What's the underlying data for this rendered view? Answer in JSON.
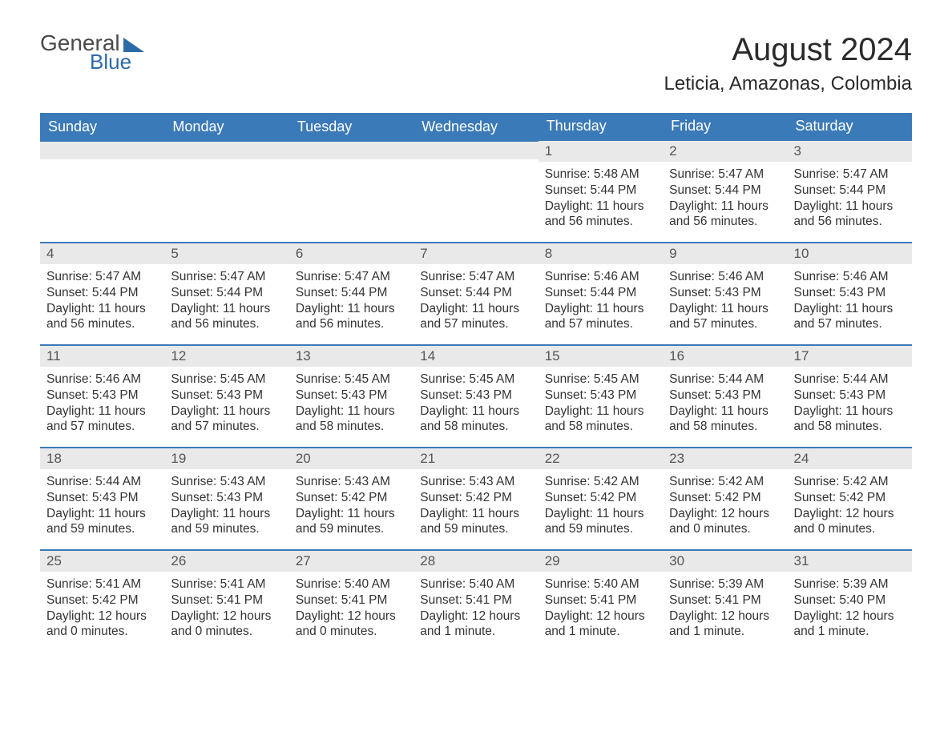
{
  "logo": {
    "text1": "General",
    "text2": "Blue"
  },
  "title": "August 2024",
  "location": "Leticia, Amazonas, Colombia",
  "colors": {
    "header_bg": "#3b7ab8",
    "header_text": "#ffffff",
    "daynum_bg": "#e9e9e9",
    "border": "#3b7ab8",
    "logo_accent": "#2e6aa8",
    "body_text": "#333333"
  },
  "columns": [
    "Sunday",
    "Monday",
    "Tuesday",
    "Wednesday",
    "Thursday",
    "Friday",
    "Saturday"
  ],
  "weeks": [
    [
      null,
      null,
      null,
      null,
      {
        "n": "1",
        "sunrise": "5:48 AM",
        "sunset": "5:44 PM",
        "daylight": "11 hours and 56 minutes."
      },
      {
        "n": "2",
        "sunrise": "5:47 AM",
        "sunset": "5:44 PM",
        "daylight": "11 hours and 56 minutes."
      },
      {
        "n": "3",
        "sunrise": "5:47 AM",
        "sunset": "5:44 PM",
        "daylight": "11 hours and 56 minutes."
      }
    ],
    [
      {
        "n": "4",
        "sunrise": "5:47 AM",
        "sunset": "5:44 PM",
        "daylight": "11 hours and 56 minutes."
      },
      {
        "n": "5",
        "sunrise": "5:47 AM",
        "sunset": "5:44 PM",
        "daylight": "11 hours and 56 minutes."
      },
      {
        "n": "6",
        "sunrise": "5:47 AM",
        "sunset": "5:44 PM",
        "daylight": "11 hours and 56 minutes."
      },
      {
        "n": "7",
        "sunrise": "5:47 AM",
        "sunset": "5:44 PM",
        "daylight": "11 hours and 57 minutes."
      },
      {
        "n": "8",
        "sunrise": "5:46 AM",
        "sunset": "5:44 PM",
        "daylight": "11 hours and 57 minutes."
      },
      {
        "n": "9",
        "sunrise": "5:46 AM",
        "sunset": "5:43 PM",
        "daylight": "11 hours and 57 minutes."
      },
      {
        "n": "10",
        "sunrise": "5:46 AM",
        "sunset": "5:43 PM",
        "daylight": "11 hours and 57 minutes."
      }
    ],
    [
      {
        "n": "11",
        "sunrise": "5:46 AM",
        "sunset": "5:43 PM",
        "daylight": "11 hours and 57 minutes."
      },
      {
        "n": "12",
        "sunrise": "5:45 AM",
        "sunset": "5:43 PM",
        "daylight": "11 hours and 57 minutes."
      },
      {
        "n": "13",
        "sunrise": "5:45 AM",
        "sunset": "5:43 PM",
        "daylight": "11 hours and 58 minutes."
      },
      {
        "n": "14",
        "sunrise": "5:45 AM",
        "sunset": "5:43 PM",
        "daylight": "11 hours and 58 minutes."
      },
      {
        "n": "15",
        "sunrise": "5:45 AM",
        "sunset": "5:43 PM",
        "daylight": "11 hours and 58 minutes."
      },
      {
        "n": "16",
        "sunrise": "5:44 AM",
        "sunset": "5:43 PM",
        "daylight": "11 hours and 58 minutes."
      },
      {
        "n": "17",
        "sunrise": "5:44 AM",
        "sunset": "5:43 PM",
        "daylight": "11 hours and 58 minutes."
      }
    ],
    [
      {
        "n": "18",
        "sunrise": "5:44 AM",
        "sunset": "5:43 PM",
        "daylight": "11 hours and 59 minutes."
      },
      {
        "n": "19",
        "sunrise": "5:43 AM",
        "sunset": "5:43 PM",
        "daylight": "11 hours and 59 minutes."
      },
      {
        "n": "20",
        "sunrise": "5:43 AM",
        "sunset": "5:42 PM",
        "daylight": "11 hours and 59 minutes."
      },
      {
        "n": "21",
        "sunrise": "5:43 AM",
        "sunset": "5:42 PM",
        "daylight": "11 hours and 59 minutes."
      },
      {
        "n": "22",
        "sunrise": "5:42 AM",
        "sunset": "5:42 PM",
        "daylight": "11 hours and 59 minutes."
      },
      {
        "n": "23",
        "sunrise": "5:42 AM",
        "sunset": "5:42 PM",
        "daylight": "12 hours and 0 minutes."
      },
      {
        "n": "24",
        "sunrise": "5:42 AM",
        "sunset": "5:42 PM",
        "daylight": "12 hours and 0 minutes."
      }
    ],
    [
      {
        "n": "25",
        "sunrise": "5:41 AM",
        "sunset": "5:42 PM",
        "daylight": "12 hours and 0 minutes."
      },
      {
        "n": "26",
        "sunrise": "5:41 AM",
        "sunset": "5:41 PM",
        "daylight": "12 hours and 0 minutes."
      },
      {
        "n": "27",
        "sunrise": "5:40 AM",
        "sunset": "5:41 PM",
        "daylight": "12 hours and 0 minutes."
      },
      {
        "n": "28",
        "sunrise": "5:40 AM",
        "sunset": "5:41 PM",
        "daylight": "12 hours and 1 minute."
      },
      {
        "n": "29",
        "sunrise": "5:40 AM",
        "sunset": "5:41 PM",
        "daylight": "12 hours and 1 minute."
      },
      {
        "n": "30",
        "sunrise": "5:39 AM",
        "sunset": "5:41 PM",
        "daylight": "12 hours and 1 minute."
      },
      {
        "n": "31",
        "sunrise": "5:39 AM",
        "sunset": "5:40 PM",
        "daylight": "12 hours and 1 minute."
      }
    ]
  ],
  "labels": {
    "sunrise": "Sunrise:",
    "sunset": "Sunset:",
    "daylight": "Daylight:"
  }
}
